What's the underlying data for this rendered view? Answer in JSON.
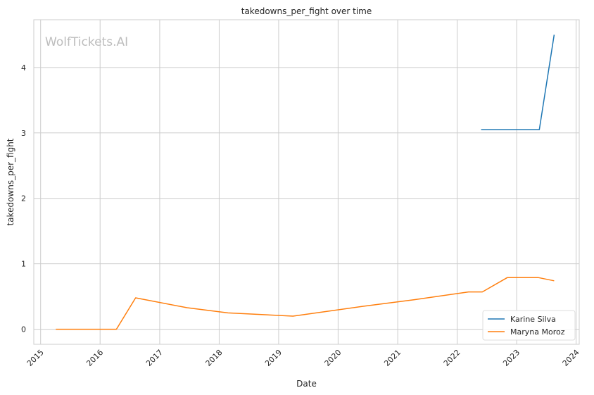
{
  "watermark": "WolfTickets.AI",
  "chart_data": {
    "type": "line",
    "title": "takedowns_per_fight over time",
    "xlabel": "Date",
    "ylabel": "takedowns_per_fight",
    "x_ticks": [
      "2015",
      "2016",
      "2017",
      "2018",
      "2019",
      "2020",
      "2021",
      "2022",
      "2023",
      "2024"
    ],
    "y_ticks": [
      "0",
      "1",
      "2",
      "3",
      "4"
    ],
    "xlim": [
      "2014-11-20",
      "2024-01-20"
    ],
    "ylim": [
      -0.23,
      4.73
    ],
    "grid": true,
    "legend_position": "bottom-right",
    "series": [
      {
        "name": "Karine Silva",
        "color": "#1f77b4",
        "points": [
          {
            "x": "2022-05-28",
            "y": 3.05
          },
          {
            "x": "2023-05-20",
            "y": 3.05
          },
          {
            "x": "2023-08-19",
            "y": 4.5
          }
        ]
      },
      {
        "name": "Maryna Moroz",
        "color": "#ff7f0e",
        "points": [
          {
            "x": "2015-04-04",
            "y": 0.0
          },
          {
            "x": "2016-04-10",
            "y": 0.0
          },
          {
            "x": "2016-08-06",
            "y": 0.48
          },
          {
            "x": "2017-06-17",
            "y": 0.33
          },
          {
            "x": "2018-02-24",
            "y": 0.25
          },
          {
            "x": "2019-03-30",
            "y": 0.2
          },
          {
            "x": "2020-05-30",
            "y": 0.35
          },
          {
            "x": "2021-04-10",
            "y": 0.45
          },
          {
            "x": "2022-03-12",
            "y": 0.57
          },
          {
            "x": "2022-06-04",
            "y": 0.57
          },
          {
            "x": "2022-11-05",
            "y": 0.79
          },
          {
            "x": "2023-05-13",
            "y": 0.79
          },
          {
            "x": "2023-08-19",
            "y": 0.74
          }
        ]
      }
    ]
  }
}
